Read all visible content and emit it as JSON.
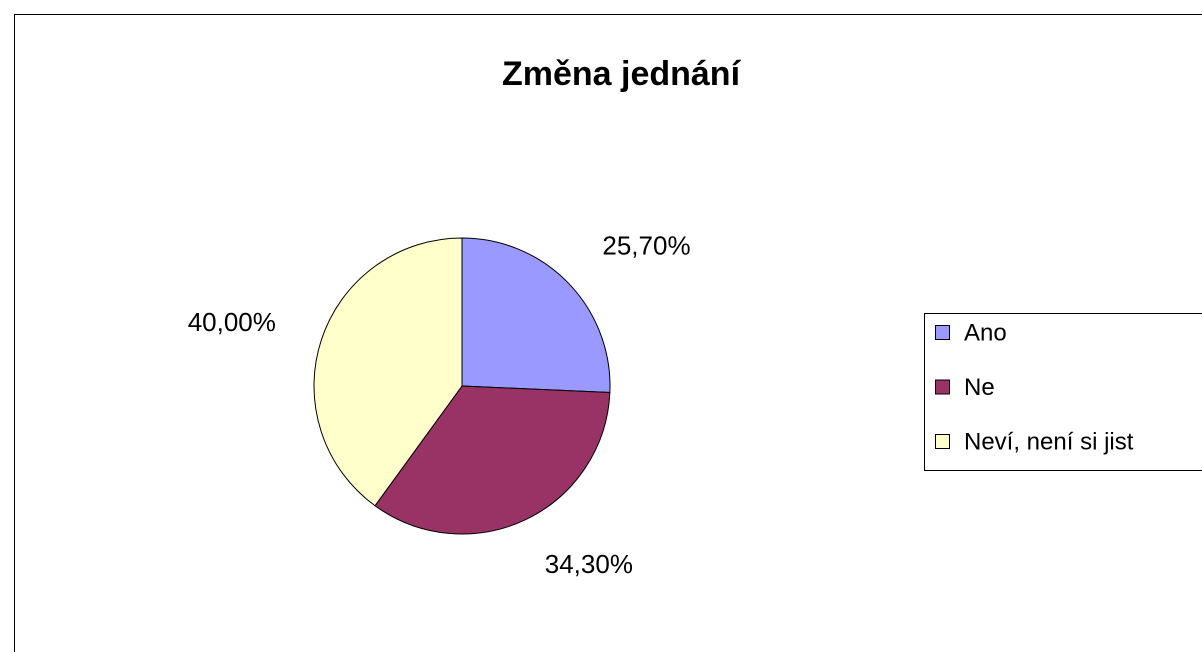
{
  "chart_data": {
    "type": "pie",
    "title": "Změna jednání",
    "categories": [
      "Ano",
      "Ne",
      "Neví, není si jist"
    ],
    "values": [
      25.7,
      34.3,
      40.0
    ],
    "value_labels": [
      "25,70%",
      "34,30%",
      "40,00%"
    ],
    "colors": [
      "#9999ff",
      "#993366",
      "#ffffcc"
    ],
    "legend": "right"
  }
}
